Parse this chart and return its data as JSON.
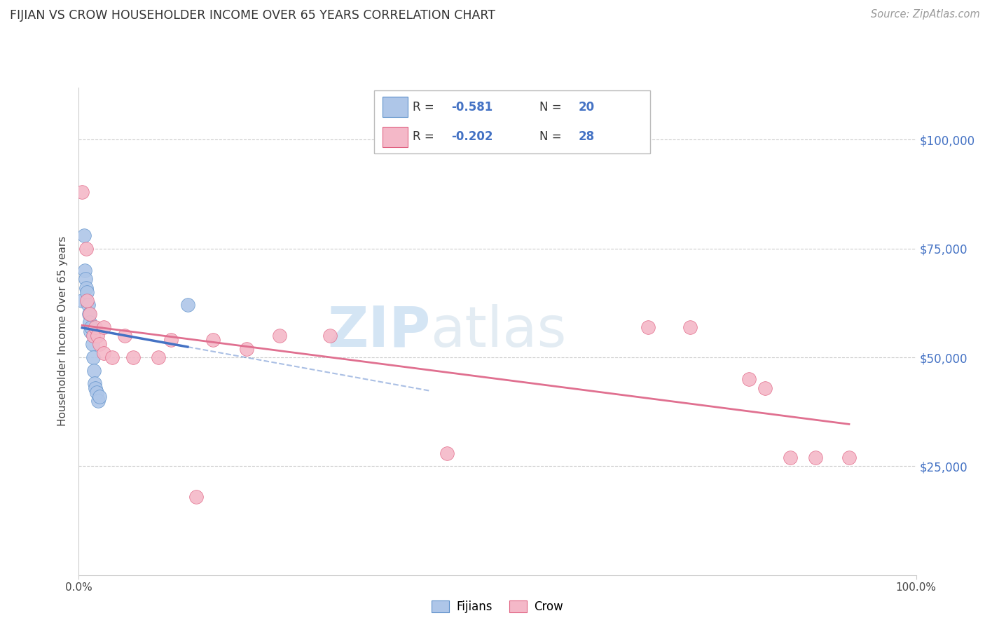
{
  "title": "FIJIAN VS CROW HOUSEHOLDER INCOME OVER 65 YEARS CORRELATION CHART",
  "source": "Source: ZipAtlas.com",
  "ylabel": "Householder Income Over 65 years",
  "watermark_zip": "ZIP",
  "watermark_atlas": "atlas",
  "y_tick_values": [
    25000,
    50000,
    75000,
    100000
  ],
  "xlim": [
    0.0,
    1.0
  ],
  "ylim": [
    0,
    112000
  ],
  "fijian_color": "#aec6e8",
  "fijian_edge_color": "#5b8fc9",
  "crow_color": "#f4b8c8",
  "crow_edge_color": "#e06080",
  "fijian_line_color": "#4472c4",
  "crow_line_color": "#e07090",
  "background_color": "#ffffff",
  "grid_color": "#cccccc",
  "legend_r_color": "#4472c4",
  "legend_n_color": "#4472c4",
  "fijian_points_x": [
    0.004,
    0.006,
    0.007,
    0.008,
    0.009,
    0.01,
    0.011,
    0.012,
    0.013,
    0.014,
    0.015,
    0.016,
    0.017,
    0.018,
    0.019,
    0.02,
    0.021,
    0.023,
    0.025,
    0.13
  ],
  "fijian_points_y": [
    63000,
    78000,
    70000,
    68000,
    66000,
    65000,
    62000,
    60000,
    58000,
    56000,
    57000,
    53000,
    50000,
    47000,
    44000,
    43000,
    42000,
    40000,
    41000,
    62000
  ],
  "crow_points_x": [
    0.004,
    0.009,
    0.01,
    0.013,
    0.017,
    0.02,
    0.022,
    0.025,
    0.03,
    0.03,
    0.04,
    0.055,
    0.065,
    0.095,
    0.11,
    0.14,
    0.16,
    0.2,
    0.24,
    0.3,
    0.44,
    0.68,
    0.73,
    0.8,
    0.82,
    0.85,
    0.88,
    0.92
  ],
  "crow_points_y": [
    88000,
    75000,
    63000,
    60000,
    55000,
    57000,
    55000,
    53000,
    57000,
    51000,
    50000,
    55000,
    50000,
    50000,
    54000,
    18000,
    54000,
    52000,
    55000,
    55000,
    28000,
    57000,
    57000,
    45000,
    43000,
    27000,
    27000,
    27000
  ]
}
